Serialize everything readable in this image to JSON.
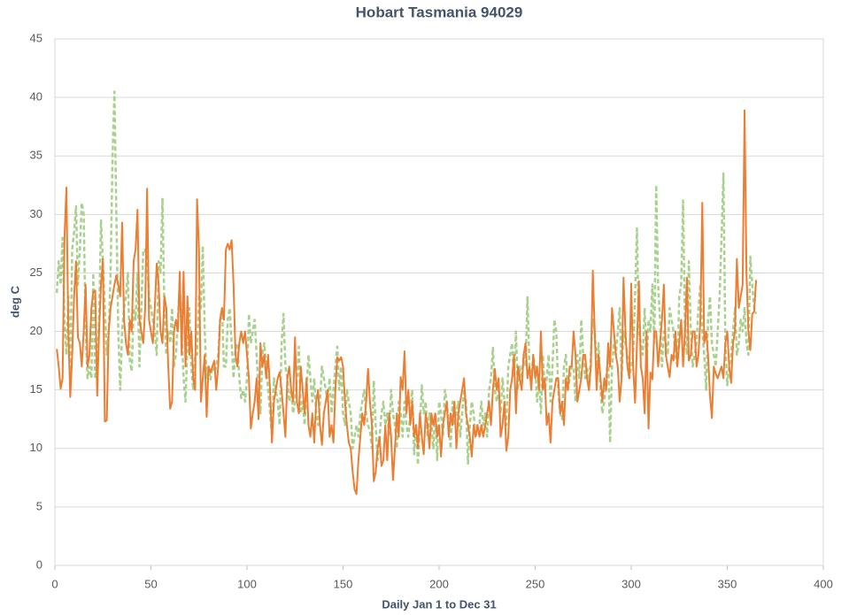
{
  "chart_data": {
    "type": "line",
    "title": "Hobart Tasmania 94029",
    "xlabel": "Daily Jan 1 to Dec 31",
    "ylabel": "deg C",
    "xlim": [
      0,
      400
    ],
    "xticks": [
      0,
      50,
      100,
      150,
      200,
      250,
      300,
      350,
      400
    ],
    "ylim": [
      0,
      45
    ],
    "yticks": [
      0,
      5,
      10,
      15,
      20,
      25,
      30,
      35,
      40,
      45
    ],
    "grid": true,
    "x": [
      1,
      2,
      3,
      4,
      5,
      6,
      7,
      8,
      9,
      10,
      11,
      12,
      13,
      14,
      15,
      16,
      17,
      18,
      19,
      20,
      21,
      22,
      23,
      24,
      25,
      26,
      27,
      28,
      29,
      30,
      31,
      32,
      33,
      34,
      35,
      36,
      37,
      38,
      39,
      40,
      41,
      42,
      43,
      44,
      45,
      46,
      47,
      48,
      49,
      50,
      51,
      52,
      53,
      54,
      55,
      56,
      57,
      58,
      59,
      60,
      61,
      62,
      63,
      64,
      65,
      66,
      67,
      68,
      69,
      70,
      71,
      72,
      73,
      74,
      75,
      76,
      77,
      78,
      79,
      80,
      81,
      82,
      83,
      84,
      85,
      86,
      87,
      88,
      89,
      90,
      91,
      92,
      93,
      94,
      95,
      96,
      97,
      98,
      99,
      100,
      101,
      102,
      103,
      104,
      105,
      106,
      107,
      108,
      109,
      110,
      111,
      112,
      113,
      114,
      115,
      116,
      117,
      118,
      119,
      120,
      121,
      122,
      123,
      124,
      125,
      126,
      127,
      128,
      129,
      130,
      131,
      132,
      133,
      134,
      135,
      136,
      137,
      138,
      139,
      140,
      141,
      142,
      143,
      144,
      145,
      146,
      147,
      148,
      149,
      150,
      151,
      152,
      153,
      154,
      155,
      156,
      157,
      158,
      159,
      160,
      161,
      162,
      163,
      164,
      165,
      166,
      167,
      168,
      169,
      170,
      171,
      172,
      173,
      174,
      175,
      176,
      177,
      178,
      179,
      180,
      181,
      182,
      183,
      184,
      185,
      186,
      187,
      188,
      189,
      190,
      191,
      192,
      193,
      194,
      195,
      196,
      197,
      198,
      199,
      200,
      201,
      202,
      203,
      204,
      205,
      206,
      207,
      208,
      209,
      210,
      211,
      212,
      213,
      214,
      215,
      216,
      217,
      218,
      219,
      220,
      221,
      222,
      223,
      224,
      225,
      226,
      227,
      228,
      229,
      230,
      231,
      232,
      233,
      234,
      235,
      236,
      237,
      238,
      239,
      240,
      241,
      242,
      243,
      244,
      245,
      246,
      247,
      248,
      249,
      250,
      251,
      252,
      253,
      254,
      255,
      256,
      257,
      258,
      259,
      260,
      261,
      262,
      263,
      264,
      265,
      266,
      267,
      268,
      269,
      270,
      271,
      272,
      273,
      274,
      275,
      276,
      277,
      278,
      279,
      280,
      281,
      282,
      283,
      284,
      285,
      286,
      287,
      288,
      289,
      290,
      291,
      292,
      293,
      294,
      295,
      296,
      297,
      298,
      299,
      300,
      301,
      302,
      303,
      304,
      305,
      306,
      307,
      308,
      309,
      310,
      311,
      312,
      313,
      314,
      315,
      316,
      317,
      318,
      319,
      320,
      321,
      322,
      323,
      324,
      325,
      326,
      327,
      328,
      329,
      330,
      331,
      332,
      333,
      334,
      335,
      336,
      337,
      338,
      339,
      340,
      341,
      342,
      343,
      344,
      345,
      346,
      347,
      348,
      349,
      350,
      351,
      352,
      353,
      354,
      355,
      356,
      357,
      358,
      359,
      360,
      361,
      362,
      363,
      364,
      365
    ],
    "series": [
      {
        "color": "#a9d18e",
        "dashed": true,
        "values": [
          23.3,
          26,
          24,
          28,
          21,
          18,
          23,
          16,
          27,
          28.5,
          30.7,
          24,
          27,
          31,
          30,
          20,
          16,
          17,
          16,
          25,
          16,
          17,
          21,
          29.5,
          26,
          22,
          18,
          20,
          25,
          35,
          40.5,
          30,
          20,
          15,
          20,
          22,
          23,
          25,
          17.5,
          16.6,
          22,
          21,
          25,
          17,
          22,
          27,
          27,
          26,
          23,
          22,
          21,
          20,
          18,
          26,
          25,
          31.4,
          22,
          18,
          20,
          19,
          22,
          17,
          18,
          21,
          24,
          20,
          16,
          14,
          19,
          22,
          17,
          15,
          18,
          18,
          23,
          22,
          27.3,
          20,
          16,
          17,
          15.9,
          17,
          16.5,
          17,
          18,
          21,
          22,
          17,
          17,
          21,
          22,
          19,
          16,
          18.5,
          19,
          16,
          14.3,
          15,
          14,
          16,
          21.5,
          19,
          20,
          21,
          18,
          15,
          13,
          18,
          19,
          17,
          15,
          13,
          11,
          16,
          15,
          14,
          12,
          19,
          21.5,
          17,
          16,
          14,
          15,
          13,
          14,
          16,
          18.7,
          13,
          14,
          12,
          15,
          18,
          16,
          14,
          16,
          13,
          12,
          14,
          17,
          16,
          15,
          14,
          16,
          13,
          15,
          17,
          18.7,
          15,
          17,
          13,
          12,
          15,
          14,
          13,
          10,
          11,
          12,
          11,
          13,
          14,
          15,
          13,
          12,
          11.5,
          10,
          15.8,
          12,
          9,
          11,
          13,
          14,
          12,
          13,
          11,
          15,
          13,
          12,
          10,
          14,
          13,
          11,
          14,
          12,
          11,
          13,
          15,
          9.5,
          12,
          8.6,
          12,
          15.4,
          13,
          14,
          11,
          13,
          12,
          10,
          13,
          9,
          14,
          13,
          11,
          15,
          14,
          12,
          10,
          14,
          12,
          13,
          14,
          11,
          13,
          15,
          14,
          8.7,
          12,
          14,
          13,
          11,
          12,
          12,
          14,
          12,
          13,
          11,
          15,
          16,
          18.6,
          15,
          14,
          15,
          13,
          16,
          14,
          12,
          17,
          18,
          19,
          16,
          20,
          15,
          17,
          16,
          18,
          17,
          23,
          17,
          16,
          18,
          17,
          14,
          16,
          13,
          18,
          15,
          16,
          18,
          14,
          17,
          21,
          20,
          15,
          13,
          12.5,
          17,
          18,
          15,
          16,
          17,
          17,
          14,
          18,
          16,
          21,
          18,
          16,
          17,
          15,
          18,
          21,
          20,
          17,
          19,
          15,
          13,
          14,
          16,
          18,
          10.5,
          17,
          19,
          18,
          20,
          22,
          16,
          20,
          19,
          18,
          16,
          17,
          18,
          23,
          28.8,
          20,
          19,
          18,
          22,
          17,
          21,
          20,
          24,
          19,
          32.5,
          24,
          21,
          17,
          20,
          19,
          18,
          22,
          21,
          20,
          18,
          17,
          23,
          24,
          31.2,
          20,
          18,
          26,
          20,
          17,
          18,
          19,
          22,
          24,
          20,
          18,
          15,
          21,
          23,
          19,
          18,
          17,
          20,
          23,
          28,
          33.5,
          19,
          15.4,
          17,
          18,
          20,
          22,
          18,
          19,
          21,
          20,
          22,
          19,
          18,
          26.4,
          24,
          22,
          21.5
        ]
      },
      {
        "color": "#ed7d31",
        "dashed": false,
        "values": [
          18.5,
          17,
          15.1,
          16,
          28,
          32.3,
          20,
          14.4,
          18,
          23,
          26,
          19.5,
          19,
          17,
          20,
          24,
          17,
          18,
          22,
          23.4,
          23.5,
          14.5,
          20,
          24,
          26.2,
          12.3,
          12.4,
          20,
          22,
          23,
          24,
          24.8,
          24,
          23,
          29.3,
          21,
          19,
          18,
          21,
          20,
          26,
          27,
          30.4,
          21,
          20,
          19,
          22,
          32.2,
          21,
          20,
          19,
          22,
          25.8,
          24,
          20,
          19,
          23,
          22,
          17,
          13.4,
          14,
          20,
          21,
          20,
          25.1,
          18,
          25.1,
          17,
          23,
          18,
          20,
          16,
          15,
          31.3,
          27,
          14,
          16,
          18,
          12.7,
          17,
          16.5,
          17,
          17.5,
          15,
          17,
          21,
          22,
          21,
          27,
          27.5,
          27,
          27.8,
          24,
          18,
          17,
          19,
          20,
          19,
          20,
          18,
          16,
          11.7,
          13,
          14,
          16,
          12.5,
          19,
          17,
          18,
          16,
          18,
          15,
          10.5,
          14,
          15,
          16,
          16.5,
          15,
          13,
          11,
          16,
          17,
          15,
          14,
          19.5,
          14,
          13,
          17,
          15,
          13,
          16,
          12,
          11,
          13,
          10.5,
          14,
          15,
          12,
          10.3,
          13,
          14,
          15,
          11,
          12,
          10.5,
          15,
          17.8,
          17.5,
          17.8,
          17,
          14,
          12,
          10.5,
          10,
          8,
          6.5,
          6.1,
          9,
          11,
          13,
          12,
          14,
          16.8,
          14,
          12,
          7.2,
          8,
          10,
          11,
          8.5,
          9,
          12,
          9,
          13,
          11,
          7.3,
          10,
          13,
          11,
          16.1,
          15,
          18.3,
          13,
          15,
          12,
          14,
          11,
          12,
          10,
          13,
          11,
          9.5,
          13,
          12,
          10,
          13,
          12,
          13,
          11,
          12,
          9.3,
          12,
          13,
          14,
          11,
          13,
          12,
          14,
          10,
          13,
          14,
          15,
          16,
          13,
          12,
          11,
          9.3,
          12,
          11,
          12,
          11,
          12,
          11,
          12,
          13,
          14,
          12,
          15,
          16.8,
          15,
          16,
          11,
          12,
          14,
          9.8,
          11,
          15,
          16,
          18,
          13,
          17,
          16,
          15,
          18,
          19,
          16,
          17,
          15,
          18,
          16,
          17,
          15,
          20,
          15,
          16,
          12,
          13,
          10.5,
          14,
          15,
          16,
          16,
          13,
          14,
          12,
          16,
          15,
          17,
          17,
          20,
          18,
          14,
          15,
          16,
          18,
          18,
          16,
          15,
          17,
          25.2,
          20,
          15,
          18,
          16,
          14,
          16,
          15,
          19,
          17,
          22,
          20,
          18,
          17,
          14,
          16,
          24.6,
          20,
          17,
          16,
          24.1,
          17,
          13.9,
          19,
          24.3,
          17,
          16,
          13,
          20,
          11.7,
          16.5,
          15.9,
          20,
          20,
          17,
          19,
          21,
          24,
          18,
          17,
          16.1,
          18,
          17.5,
          20,
          17,
          19,
          21,
          17,
          20,
          24.6,
          17.5,
          18,
          20,
          20,
          17,
          18,
          21,
          31,
          19,
          20,
          18,
          14.5,
          12.6,
          17,
          16.4,
          16,
          16.5,
          17,
          16,
          19,
          20,
          17,
          15.6,
          19,
          20,
          26.2,
          22,
          23,
          24,
          38.9,
          25,
          20,
          18.4,
          21.5,
          21.7,
          24.4
        ]
      }
    ]
  }
}
